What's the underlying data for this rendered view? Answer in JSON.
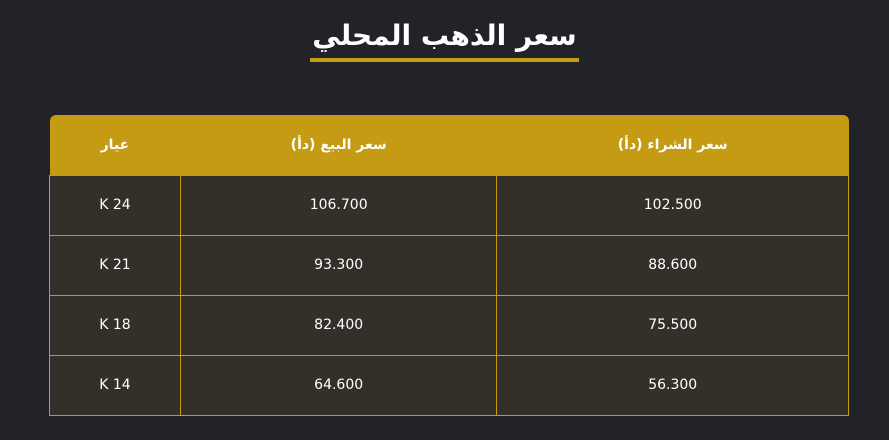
{
  "page_title": "سعر الذهب المحلي",
  "table": {
    "headers": [
      "سعر الشراء (دأ)",
      "سعر البيع (دأ)",
      "عيار"
    ],
    "rows": [
      {
        "buy": "102.500",
        "sell": "106.700",
        "karat": "24 K"
      },
      {
        "buy": "88.600",
        "sell": "93.300",
        "karat": "21 K"
      },
      {
        "buy": "75.500",
        "sell": "82.400",
        "karat": "18 K"
      },
      {
        "buy": "56.300",
        "sell": "64.600",
        "karat": "14 K"
      }
    ]
  },
  "colors": {
    "accent": "#c49b12",
    "background": "#222328",
    "row_background": "#333029"
  }
}
